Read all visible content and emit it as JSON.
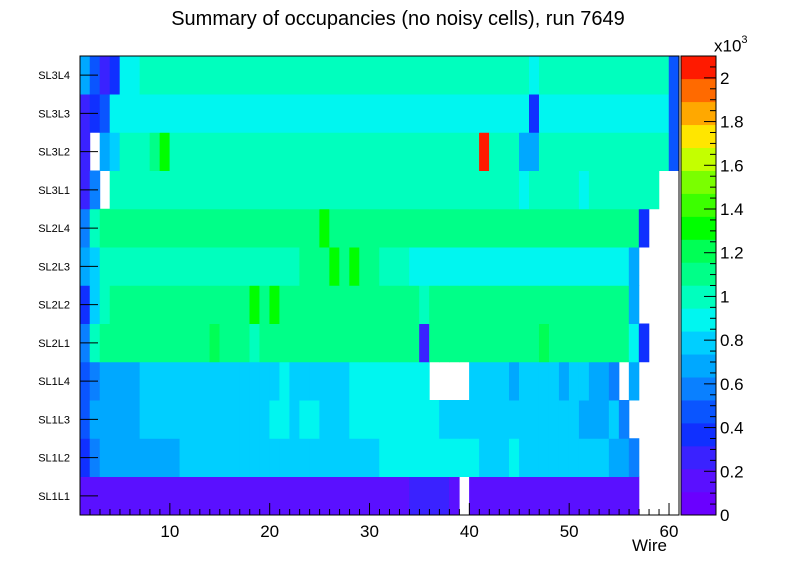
{
  "chart_data": {
    "type": "heatmap",
    "title": "Summary of occupancies (no noisy cells), run 7649",
    "xlabel": "Wire",
    "ylabel": "",
    "x_range": [
      1,
      61
    ],
    "x_ticks": [
      10,
      20,
      30,
      40,
      50,
      60
    ],
    "layers": [
      "SL1L1",
      "SL1L2",
      "SL1L3",
      "SL1L4",
      "SL2L1",
      "SL2L2",
      "SL2L3",
      "SL2L4",
      "SL3L1",
      "SL3L2",
      "SL3L3",
      "SL3L4"
    ],
    "z_range": [
      0,
      2100
    ],
    "z_axis_multiplier": "x10",
    "z_axis_exponent": "3",
    "z_ticks": [
      "0",
      "0.2",
      "0.4",
      "0.6",
      "0.8",
      "1",
      "1.2",
      "1.4",
      "1.6",
      "1.8",
      "2"
    ],
    "rows": [
      [
        110,
        110,
        110,
        110,
        110,
        110,
        110,
        110,
        110,
        110,
        110,
        110,
        110,
        110,
        110,
        110,
        110,
        110,
        110,
        110,
        110,
        110,
        110,
        110,
        110,
        110,
        110,
        110,
        110,
        110,
        110,
        110,
        110,
        240,
        240,
        240,
        240,
        110,
        null,
        110,
        110,
        110,
        110,
        110,
        110,
        110,
        110,
        110,
        110,
        110,
        110,
        110,
        110,
        110,
        110,
        110,
        null,
        null,
        null,
        null
      ],
      [
        400,
        530,
        650,
        690,
        700,
        700,
        720,
        690,
        650,
        700,
        760,
        760,
        780,
        760,
        760,
        800,
        780,
        760,
        760,
        800,
        830,
        780,
        790,
        800,
        760,
        790,
        780,
        800,
        780,
        780,
        900,
        860,
        900,
        880,
        860,
        860,
        860,
        860,
        860,
        860,
        820,
        800,
        800,
        860,
        820,
        780,
        760,
        800,
        800,
        820,
        800,
        760,
        740,
        700,
        700,
        620,
        null,
        null,
        null,
        null
      ],
      [
        420,
        650,
        690,
        680,
        690,
        720,
        760,
        760,
        760,
        760,
        800,
        800,
        800,
        780,
        780,
        800,
        780,
        780,
        820,
        860,
        860,
        820,
        860,
        860,
        820,
        800,
        800,
        860,
        860,
        860,
        860,
        900,
        900,
        860,
        860,
        860,
        800,
        800,
        800,
        800,
        800,
        780,
        760,
        800,
        820,
        780,
        760,
        760,
        780,
        760,
        720,
        700,
        700,
        780,
        620,
        null,
        null,
        null,
        null,
        null
      ],
      [
        450,
        580,
        680,
        700,
        700,
        730,
        760,
        760,
        770,
        780,
        780,
        780,
        800,
        800,
        800,
        800,
        800,
        800,
        830,
        830,
        900,
        830,
        830,
        830,
        830,
        800,
        800,
        860,
        860,
        860,
        860,
        900,
        900,
        860,
        860,
        null,
        null,
        null,
        null,
        800,
        800,
        760,
        740,
        700,
        780,
        760,
        780,
        740,
        700,
        760,
        780,
        720,
        700,
        620,
        null,
        720,
        null,
        null,
        null,
        null
      ],
      [
        620,
        980,
        1100,
        1100,
        1100,
        1100,
        1100,
        1100,
        1100,
        1100,
        1100,
        1100,
        1100,
        1200,
        1100,
        1100,
        1060,
        1040,
        1100,
        1100,
        1100,
        1100,
        1100,
        1100,
        1100,
        1100,
        1100,
        1100,
        1100,
        1100,
        1100,
        1100,
        1100,
        1100,
        220,
        1100,
        1100,
        1100,
        1100,
        1100,
        1100,
        1100,
        1100,
        1100,
        1100,
        1100,
        1180,
        1100,
        1100,
        1100,
        1100,
        1100,
        1100,
        1100,
        1100,
        940,
        380,
        null,
        null,
        null
      ],
      [
        400,
        820,
        1040,
        1060,
        1060,
        1060,
        1060,
        1060,
        1060,
        1060,
        1060,
        1060,
        1060,
        1060,
        1060,
        1060,
        1100,
        1280,
        1060,
        1280,
        1060,
        1060,
        1060,
        1060,
        1060,
        1060,
        1060,
        1060,
        1060,
        1060,
        1060,
        1060,
        1060,
        1060,
        960,
        1060,
        1060,
        1060,
        1060,
        1060,
        1060,
        1060,
        1060,
        1060,
        1060,
        1060,
        1060,
        1060,
        1060,
        1060,
        1060,
        1060,
        1060,
        1060,
        1060,
        700,
        null,
        null,
        null,
        null
      ],
      [
        700,
        780,
        980,
        1000,
        1000,
        1000,
        1000,
        1000,
        1000,
        1000,
        1000,
        1000,
        1000,
        1000,
        1000,
        1000,
        1000,
        1000,
        1000,
        1000,
        1000,
        1000,
        1060,
        1060,
        1060,
        1260,
        1060,
        1260,
        1060,
        1060,
        1000,
        1000,
        1000,
        940,
        940,
        940,
        940,
        940,
        940,
        940,
        940,
        940,
        940,
        940,
        940,
        940,
        940,
        940,
        940,
        940,
        940,
        940,
        940,
        940,
        940,
        700,
        null,
        null,
        null,
        null
      ],
      [
        600,
        1000,
        1060,
        1060,
        1060,
        1060,
        1060,
        1060,
        1060,
        1060,
        1060,
        1060,
        1060,
        1060,
        1060,
        1060,
        1060,
        1060,
        1060,
        1060,
        1060,
        1060,
        1060,
        1060,
        1260,
        1060,
        1060,
        1060,
        1060,
        1060,
        1060,
        1060,
        1060,
        1060,
        1060,
        1060,
        1060,
        1060,
        1060,
        1060,
        1120,
        1060,
        1060,
        1060,
        1060,
        1060,
        1060,
        1060,
        1060,
        1060,
        1060,
        1060,
        1060,
        1060,
        1060,
        1060,
        400,
        null,
        null,
        null
      ],
      [
        300,
        600,
        null,
        960,
        980,
        1000,
        980,
        1000,
        1040,
        960,
        960,
        1000,
        1000,
        1000,
        1000,
        980,
        960,
        1020,
        1000,
        960,
        980,
        980,
        1000,
        960,
        960,
        980,
        980,
        980,
        980,
        960,
        960,
        1000,
        960,
        960,
        1000,
        960,
        980,
        980,
        960,
        960,
        960,
        980,
        980,
        960,
        860,
        960,
        980,
        960,
        1040,
        960,
        940,
        960,
        960,
        960,
        960,
        960,
        960,
        960,
        null,
        null
      ],
      [
        280,
        null,
        640,
        800,
        1000,
        1040,
        1040,
        1060,
        1280,
        1040,
        1040,
        1020,
        1040,
        960,
        1020,
        1020,
        1000,
        980,
        1040,
        1040,
        1040,
        1040,
        1040,
        1040,
        1040,
        1040,
        1040,
        1040,
        1040,
        1040,
        1000,
        1000,
        1040,
        960,
        1040,
        960,
        1000,
        1000,
        1040,
        1040,
        2050,
        1040,
        1040,
        1040,
        680,
        680,
        1040,
        1040,
        960,
        960,
        960,
        960,
        960,
        960,
        960,
        960,
        960,
        960,
        960,
        420
      ],
      [
        260,
        340,
        450,
        840,
        860,
        860,
        860,
        860,
        860,
        860,
        860,
        860,
        860,
        860,
        860,
        860,
        860,
        860,
        860,
        860,
        860,
        860,
        860,
        860,
        860,
        860,
        860,
        860,
        860,
        860,
        860,
        860,
        860,
        860,
        860,
        860,
        860,
        860,
        860,
        860,
        860,
        860,
        860,
        860,
        860,
        400,
        860,
        860,
        860,
        860,
        860,
        860,
        860,
        860,
        860,
        860,
        860,
        860,
        860,
        420
      ],
      [
        700,
        520,
        300,
        400,
        860,
        860,
        960,
        1000,
        1000,
        960,
        1000,
        1000,
        1000,
        1000,
        1000,
        1000,
        1000,
        1000,
        1000,
        1000,
        1000,
        1000,
        1000,
        1000,
        1000,
        1000,
        1000,
        1000,
        1000,
        1000,
        1000,
        1000,
        1000,
        1000,
        1000,
        1000,
        1000,
        1000,
        1000,
        1000,
        1000,
        1000,
        1000,
        1000,
        960,
        860,
        960,
        960,
        960,
        960,
        960,
        960,
        960,
        960,
        960,
        960,
        960,
        960,
        960,
        500
      ]
    ]
  }
}
